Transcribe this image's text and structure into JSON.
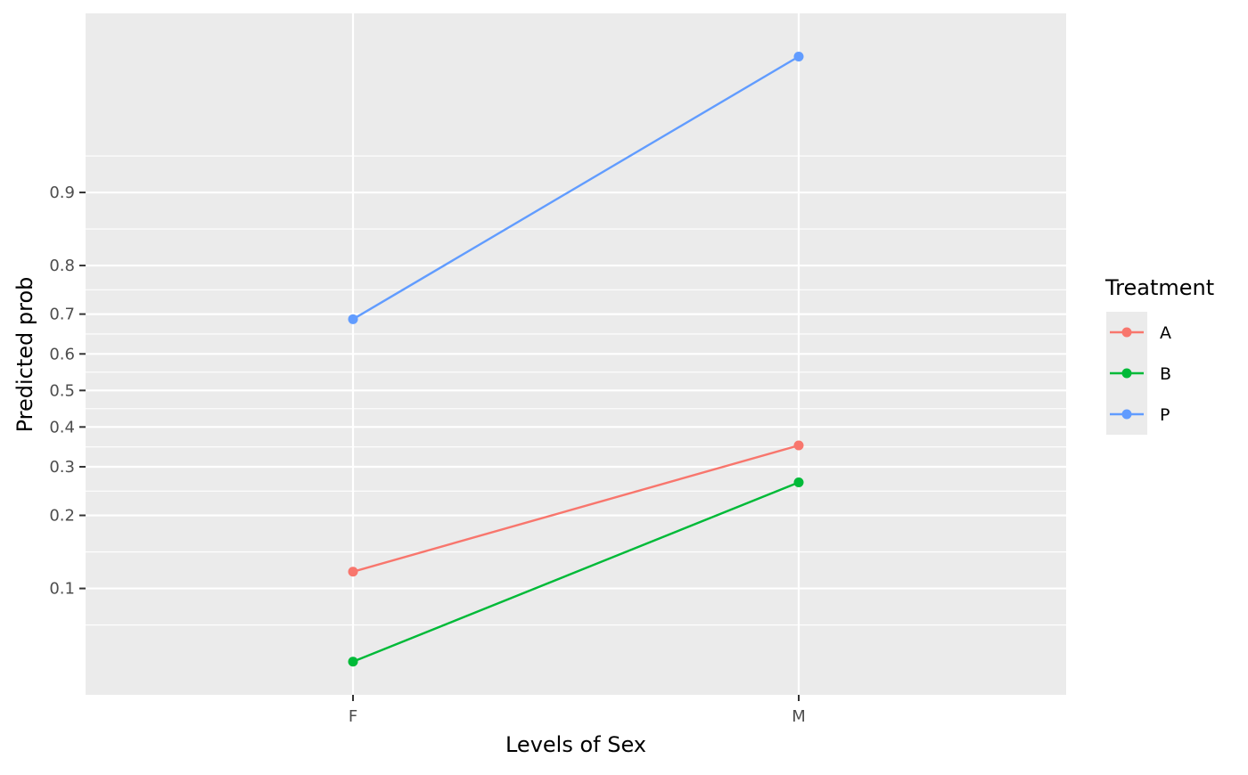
{
  "chart_data": {
    "type": "line",
    "title": "",
    "xlabel": "Levels of Sex",
    "ylabel": "Predicted prob",
    "x_scale": "categorical",
    "y_scale": "logit",
    "categories": [
      "F",
      "M"
    ],
    "y_ticks": [
      0.1,
      0.2,
      0.3,
      0.4,
      0.5,
      0.6,
      0.7,
      0.8,
      0.9
    ],
    "y_tick_labels": [
      "0.1",
      "0.2",
      "0.3",
      "0.4",
      "0.5",
      "0.6",
      "0.7",
      "0.8",
      "0.9"
    ],
    "ylim": [
      0.033,
      0.985
    ],
    "grid": true,
    "legend": {
      "title": "Treatment",
      "position": "right"
    },
    "series": [
      {
        "name": "A",
        "color": "#F8766D",
        "values": [
          0.118,
          0.352
        ]
      },
      {
        "name": "B",
        "color": "#00BA38",
        "values": [
          0.047,
          0.265
        ]
      },
      {
        "name": "P",
        "color": "#619CFF",
        "values": [
          0.688,
          0.976
        ]
      }
    ]
  }
}
